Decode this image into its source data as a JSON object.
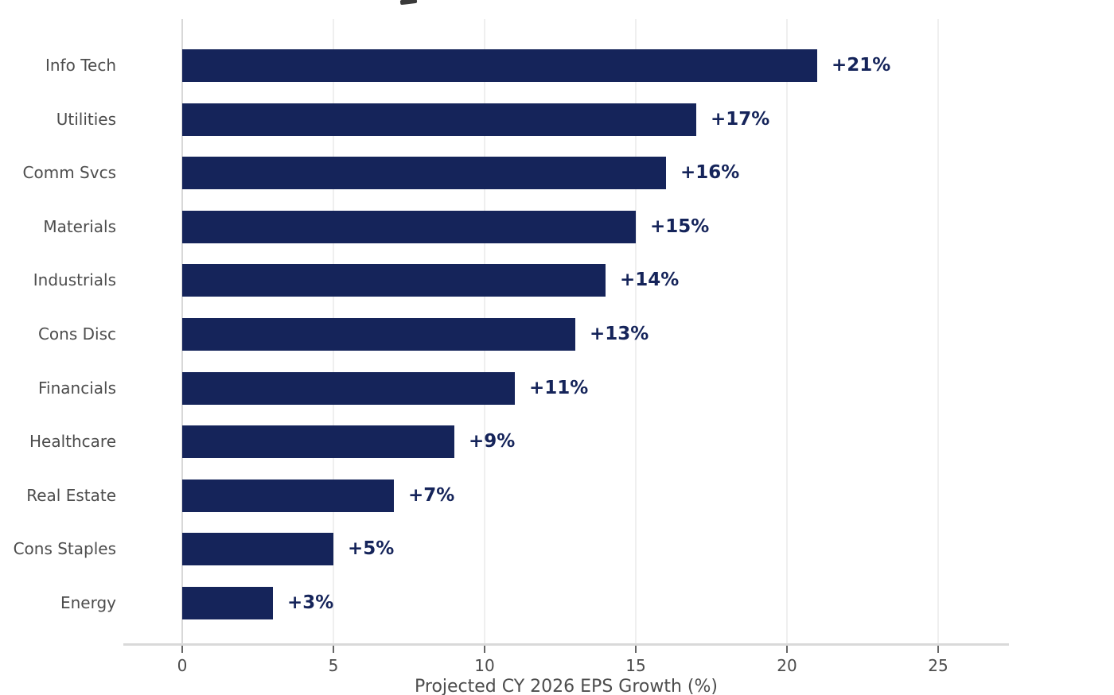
{
  "chart_data": {
    "type": "bar",
    "orientation": "horizontal",
    "categories": [
      "Info Tech",
      "Utilities",
      "Comm Svcs",
      "Materials",
      "Industrials",
      "Cons Disc",
      "Financials",
      "Healthcare",
      "Real Estate",
      "Cons Staples",
      "Energy"
    ],
    "values": [
      21,
      17,
      16,
      15,
      14,
      13,
      11,
      9,
      7,
      5,
      3
    ],
    "bar_labels": [
      "+21%",
      "+17%",
      "+16%",
      "+15%",
      "+14%",
      "+13%",
      "+11%",
      "+9%",
      "+7%",
      "+5%",
      "+3%"
    ],
    "xlabel": "Projected CY 2026 EPS Growth (%)",
    "x_ticks": [
      "0",
      "5",
      "10",
      "15",
      "20",
      "25"
    ],
    "x_tick_values": [
      0,
      5,
      10,
      15,
      20,
      25
    ],
    "xlim": [
      -2,
      27.3
    ],
    "grid": "vertical-light",
    "legend": "none",
    "title": "(cropped out of frame)",
    "colors": {
      "bar": "#15245a",
      "value_label": "#15245a",
      "axis_text": "#4d4d4d",
      "gridline": "#efefef",
      "zero_spine": "#d8d8d8",
      "axis_line": "#d9d9d9",
      "tick_mark": "#666666",
      "background": "#ffffff"
    }
  }
}
